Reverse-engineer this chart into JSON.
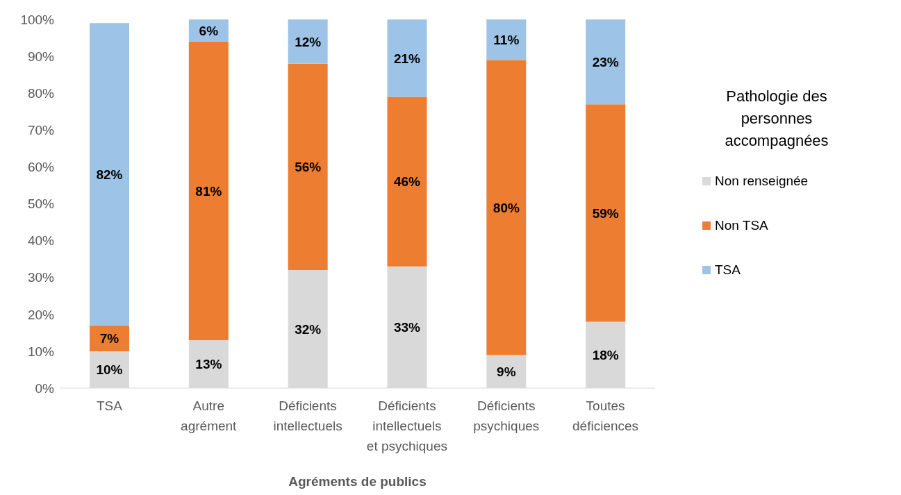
{
  "chart_data": {
    "type": "bar",
    "stacked": true,
    "xlabel": "Agréments de publics",
    "legend_title": "Pathologie des personnes accompagnées",
    "legend": "right",
    "grid": false,
    "categories": [
      "TSA",
      "Autre agrément",
      "Déficients intellectuels",
      "Déficients intellectuels et psychiques",
      "Déficients psychiques",
      "Toutes déficiences"
    ],
    "series": [
      {
        "name": "Non renseignée",
        "color": "#d9d9d9",
        "values": [
          10,
          13,
          32,
          33,
          9,
          18
        ],
        "value_labels": [
          "10%",
          "13%",
          "32%",
          "33%",
          "9%",
          "18%"
        ]
      },
      {
        "name": "Non TSA",
        "color": "#ed7d31",
        "values": [
          7,
          81,
          56,
          46,
          80,
          59
        ],
        "value_labels": [
          "7%",
          "81%",
          "56%",
          "46%",
          "80%",
          "59%"
        ]
      },
      {
        "name": "TSA",
        "color": "#9dc3e6",
        "values": [
          82,
          6,
          12,
          21,
          11,
          23
        ],
        "value_labels": [
          "82%",
          "6%",
          "12%",
          "21%",
          "11%",
          "23%"
        ]
      }
    ],
    "ylim": [
      0,
      100
    ],
    "yticks": [
      {
        "value": 0,
        "label": "0%"
      },
      {
        "value": 10,
        "label": "10%"
      },
      {
        "value": 20,
        "label": "20%"
      },
      {
        "value": 30,
        "label": "30%"
      },
      {
        "value": 40,
        "label": "40%"
      },
      {
        "value": 50,
        "label": "50%"
      },
      {
        "value": 60,
        "label": "60%"
      },
      {
        "value": 70,
        "label": "70%"
      },
      {
        "value": 80,
        "label": "80%"
      },
      {
        "value": 90,
        "label": "90%"
      },
      {
        "value": 100,
        "label": "100%"
      }
    ]
  }
}
